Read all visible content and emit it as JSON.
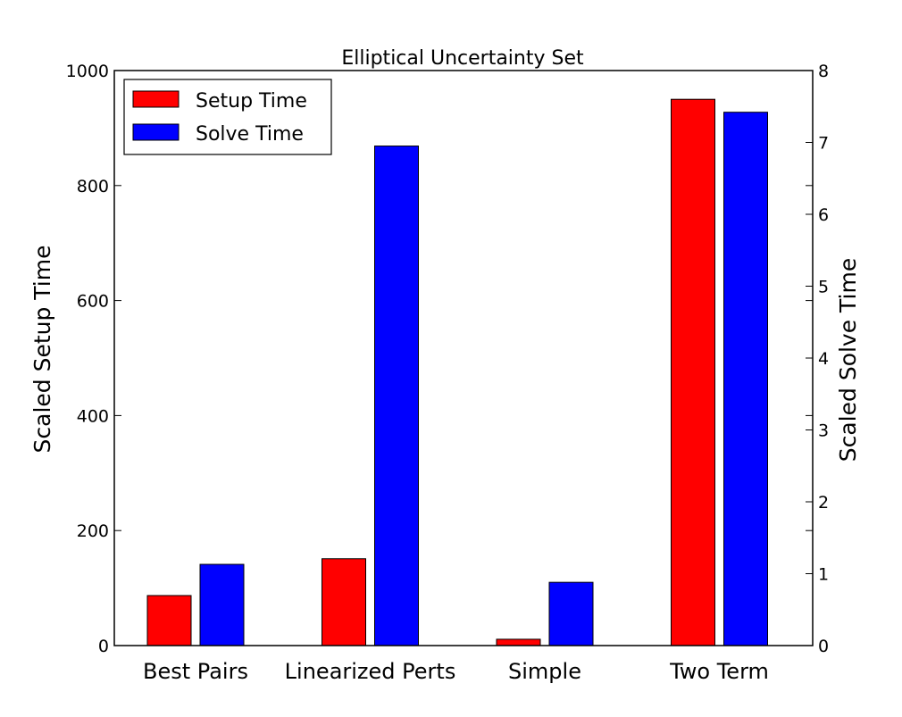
{
  "chart_data": {
    "type": "bar",
    "title": "Elliptical Uncertainty Set",
    "categories": [
      "Best Pairs",
      "Linearized Perts",
      "Simple",
      "Two Term"
    ],
    "series": [
      {
        "name": "Setup Time",
        "axis": "left",
        "color": "#ff0000",
        "values": [
          87,
          151,
          11,
          950
        ]
      },
      {
        "name": "Solve Time",
        "axis": "right",
        "color": "#0000ff",
        "values": [
          1.13,
          6.95,
          0.88,
          7.42
        ]
      }
    ],
    "y_left": {
      "label": "Scaled Setup Time",
      "lim": [
        0,
        1000
      ],
      "ticks": [
        "0",
        "200",
        "400",
        "600",
        "800",
        "1000"
      ]
    },
    "y_right": {
      "label": "Scaled Solve Time",
      "lim": [
        0,
        8
      ],
      "ticks": [
        "0",
        "1",
        "2",
        "3",
        "4",
        "5",
        "6",
        "7",
        "8"
      ]
    },
    "legend": {
      "placement": "top-left",
      "entries": [
        "Setup Time",
        "Solve Time"
      ]
    },
    "grid": false
  }
}
